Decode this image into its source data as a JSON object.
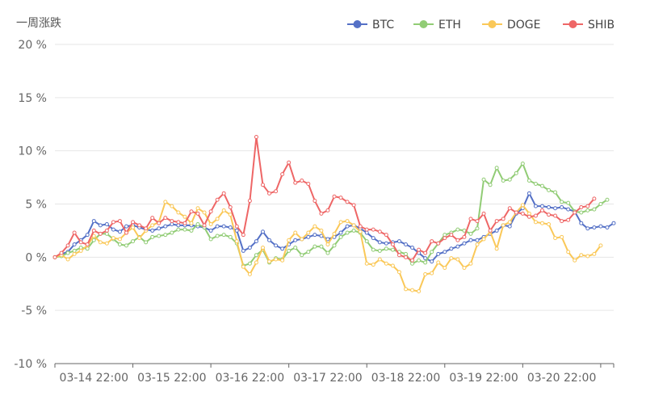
{
  "chart_data": {
    "type": "line",
    "title": "一周涨跌",
    "y_unit": "%",
    "ylim": [
      -10,
      20
    ],
    "yticks": [
      -10,
      -5,
      0,
      5,
      10,
      15,
      20
    ],
    "ytick_labels": [
      "-10 %",
      "-5 %",
      "0 %",
      "5 %",
      "10 %",
      "15 %",
      "20 %"
    ],
    "x_tick_labels": [
      "03-14 22:00",
      "03-15 22:00",
      "03-16 22:00",
      "03-17 22:00",
      "03-18 22:00",
      "03-19 22:00",
      "03-20 22:00"
    ],
    "x_tick_indices": [
      6,
      18,
      30,
      42,
      54,
      66,
      78
    ],
    "grid": true,
    "legend_position": "top-right",
    "series": [
      {
        "name": "BTC",
        "color": "#5470c6",
        "values": [
          0,
          0.3,
          0.5,
          1.2,
          1.6,
          2.1,
          3.4,
          3.0,
          3.1,
          2.6,
          2.4,
          2.9,
          3.0,
          2.8,
          2.6,
          2.5,
          2.7,
          2.9,
          3.1,
          3.0,
          3.0,
          3.0,
          2.9,
          2.8,
          2.5,
          2.9,
          2.9,
          2.8,
          2.5,
          0.6,
          0.9,
          1.5,
          2.4,
          1.6,
          1.1,
          0.8,
          1.2,
          1.6,
          1.7,
          1.9,
          2.1,
          2.0,
          1.7,
          1.9,
          2.3,
          2.9,
          3.0,
          2.7,
          2.3,
          1.8,
          1.4,
          1.3,
          1.4,
          1.5,
          1.2,
          0.9,
          0.4,
          -0.1,
          -0.4,
          0.3,
          0.5,
          0.8,
          1.0,
          1.3,
          1.6,
          1.6,
          1.9,
          2.2,
          2.5,
          3.0,
          2.9,
          4.1,
          4.6,
          6.0,
          4.8,
          4.8,
          4.7,
          4.6,
          4.7,
          4.5,
          4.3,
          3.2,
          2.7,
          2.8,
          2.9,
          2.8,
          3.2
        ]
      },
      {
        "name": "ETH",
        "color": "#91cc75",
        "values": [
          0,
          0.1,
          0.4,
          0.6,
          0.9,
          0.8,
          1.6,
          2.2,
          2.2,
          1.7,
          1.2,
          1.1,
          1.5,
          1.9,
          1.4,
          1.9,
          2.0,
          2.1,
          2.3,
          2.6,
          2.6,
          2.5,
          3.1,
          2.8,
          1.7,
          2.0,
          2.1,
          1.9,
          1.3,
          -0.8,
          -0.6,
          0.2,
          0.7,
          -0.5,
          -0.1,
          -0.2,
          0.6,
          0.9,
          0.2,
          0.5,
          1.0,
          1.0,
          0.4,
          1.1,
          1.9,
          2.3,
          2.5,
          2.3,
          1.5,
          0.7,
          0.6,
          0.8,
          0.7,
          0.5,
          0.3,
          -0.6,
          -0.3,
          -0.5,
          0.5,
          1.3,
          2.1,
          2.3,
          2.6,
          2.5,
          2.2,
          2.7,
          7.3,
          6.8,
          8.4,
          7.2,
          7.3,
          7.9,
          8.8,
          7.2,
          6.9,
          6.7,
          6.3,
          6.1,
          5.2,
          5.1,
          4.3,
          4.2,
          4.4,
          4.5,
          5.0,
          5.4
        ]
      },
      {
        "name": "DOGE",
        "color": "#fac858",
        "values": [
          0,
          0.2,
          -0.2,
          0.3,
          0.6,
          1.1,
          2.0,
          1.4,
          1.3,
          1.8,
          1.7,
          2.3,
          2.8,
          1.8,
          2.5,
          3.0,
          3.3,
          5.2,
          4.8,
          4.2,
          3.8,
          3.2,
          4.6,
          4.2,
          3.1,
          3.6,
          4.4,
          4.0,
          1.5,
          -0.9,
          -1.6,
          -0.5,
          0.9,
          -0.4,
          -0.2,
          -0.3,
          1.6,
          2.3,
          1.7,
          2.3,
          2.9,
          2.5,
          1.2,
          2.2,
          3.3,
          3.4,
          3.0,
          2.4,
          -0.6,
          -0.7,
          -0.2,
          -0.6,
          -0.8,
          -1.4,
          -3.0,
          -3.1,
          -3.2,
          -1.6,
          -1.5,
          -0.5,
          -1.0,
          -0.1,
          -0.2,
          -1.0,
          -0.6,
          1.2,
          1.7,
          2.4,
          0.8,
          3.0,
          3.3,
          4.2,
          4.9,
          4.1,
          3.3,
          3.2,
          3.1,
          1.8,
          1.9,
          0.5,
          -0.3,
          0.2,
          0.1,
          0.3,
          1.1
        ]
      },
      {
        "name": "SHIB",
        "color": "#ee6666",
        "values": [
          0,
          0.4,
          1.1,
          2.3,
          1.4,
          1.2,
          2.5,
          2.2,
          2.5,
          3.3,
          3.4,
          2.3,
          3.3,
          3.0,
          2.7,
          3.7,
          3.2,
          3.7,
          3.4,
          3.3,
          3.2,
          4.3,
          4.1,
          3.0,
          4.3,
          5.4,
          6.0,
          4.7,
          2.9,
          2.1,
          5.3,
          11.3,
          6.8,
          6.0,
          6.2,
          7.8,
          8.9,
          7.0,
          7.2,
          6.9,
          5.3,
          4.1,
          4.4,
          5.7,
          5.6,
          5.2,
          4.9,
          2.9,
          2.6,
          2.6,
          2.4,
          2.1,
          1.2,
          0.2,
          0.0,
          -0.3,
          0.7,
          0.4,
          1.5,
          1.3,
          1.8,
          2.1,
          1.6,
          1.9,
          3.6,
          3.4,
          4.1,
          2.5,
          3.4,
          3.6,
          4.6,
          4.2,
          4.1,
          3.8,
          3.9,
          4.4,
          4.0,
          3.9,
          3.4,
          3.5,
          4.2,
          4.7,
          4.8,
          5.5
        ]
      }
    ]
  }
}
